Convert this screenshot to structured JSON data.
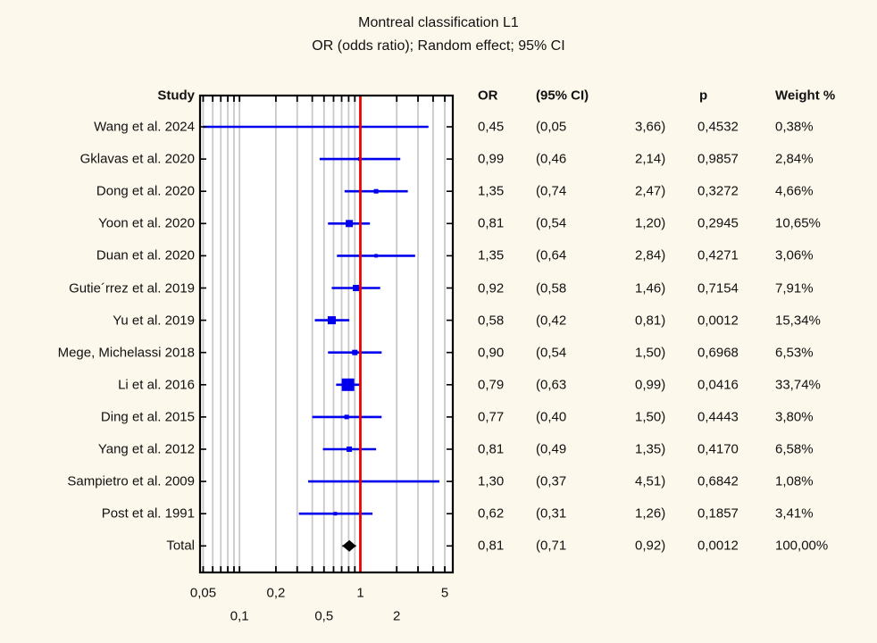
{
  "title": {
    "line1": "Montreal classification L1",
    "line2": "OR (odds ratio); Random effect; 95% CI"
  },
  "columns": {
    "study": "Study",
    "or": "OR",
    "ci": "(95% CI)",
    "p": "p",
    "weight": "Weight %"
  },
  "chart_data": {
    "type": "forest",
    "x_scale": "log",
    "ref_line": 1,
    "xlim": [
      0.047,
      5.9
    ],
    "x_ticks_major": [
      {
        "value": 0.05,
        "label": "0,05",
        "row": 1
      },
      {
        "value": 0.1,
        "label": "0,1",
        "row": 2
      },
      {
        "value": 0.2,
        "label": "0,2",
        "row": 1
      },
      {
        "value": 0.5,
        "label": "0,5",
        "row": 2
      },
      {
        "value": 1,
        "label": "1",
        "row": 1
      },
      {
        "value": 2,
        "label": "2",
        "row": 2
      },
      {
        "value": 5,
        "label": "5",
        "row": 1
      }
    ],
    "x_ticks_minor": [
      0.05,
      0.06,
      0.07,
      0.08,
      0.09,
      0.1,
      0.2,
      0.3,
      0.4,
      0.5,
      0.6,
      0.7,
      0.8,
      0.9,
      1,
      2,
      3,
      4,
      5
    ],
    "studies": [
      {
        "label": "Wang et al. 2024",
        "or": 0.45,
        "ci_low": 0.05,
        "ci_high": 3.66,
        "weight_pct": 0.38,
        "or_text": "0,45",
        "ci_low_text": "(0,05",
        "ci_high_text": "3,66)",
        "p_text": "0,4532",
        "weight_text": "0,38%"
      },
      {
        "label": "Gklavas et al. 2020",
        "or": 0.99,
        "ci_low": 0.46,
        "ci_high": 2.14,
        "weight_pct": 2.84,
        "or_text": "0,99",
        "ci_low_text": "(0,46",
        "ci_high_text": "2,14)",
        "p_text": "0,9857",
        "weight_text": "2,84%"
      },
      {
        "label": "Dong et al. 2020",
        "or": 1.35,
        "ci_low": 0.74,
        "ci_high": 2.47,
        "weight_pct": 4.66,
        "or_text": "1,35",
        "ci_low_text": "(0,74",
        "ci_high_text": "2,47)",
        "p_text": "0,3272",
        "weight_text": "4,66%"
      },
      {
        "label": "Yoon et al. 2020",
        "or": 0.81,
        "ci_low": 0.54,
        "ci_high": 1.2,
        "weight_pct": 10.65,
        "or_text": "0,81",
        "ci_low_text": "(0,54",
        "ci_high_text": "1,20)",
        "p_text": "0,2945",
        "weight_text": "10,65%"
      },
      {
        "label": "Duan et al. 2020",
        "or": 1.35,
        "ci_low": 0.64,
        "ci_high": 2.84,
        "weight_pct": 3.06,
        "or_text": "1,35",
        "ci_low_text": "(0,64",
        "ci_high_text": "2,84)",
        "p_text": "0,4271",
        "weight_text": "3,06%"
      },
      {
        "label": "Gutie´rrez et al. 2019",
        "or": 0.92,
        "ci_low": 0.58,
        "ci_high": 1.46,
        "weight_pct": 7.91,
        "or_text": "0,92",
        "ci_low_text": "(0,58",
        "ci_high_text": "1,46)",
        "p_text": "0,7154",
        "weight_text": "7,91%"
      },
      {
        "label": "Yu et al. 2019",
        "or": 0.58,
        "ci_low": 0.42,
        "ci_high": 0.81,
        "weight_pct": 15.34,
        "or_text": "0,58",
        "ci_low_text": "(0,42",
        "ci_high_text": "0,81)",
        "p_text": "0,0012",
        "weight_text": "15,34%"
      },
      {
        "label": "Mege, Michelassi 2018",
        "or": 0.9,
        "ci_low": 0.54,
        "ci_high": 1.5,
        "weight_pct": 6.53,
        "or_text": "0,90",
        "ci_low_text": "(0,54",
        "ci_high_text": "1,50)",
        "p_text": "0,6968",
        "weight_text": "6,53%"
      },
      {
        "label": "Li et al. 2016",
        "or": 0.79,
        "ci_low": 0.63,
        "ci_high": 0.99,
        "weight_pct": 33.74,
        "or_text": "0,79",
        "ci_low_text": "(0,63",
        "ci_high_text": "0,99)",
        "p_text": "0,0416",
        "weight_text": "33,74%"
      },
      {
        "label": "Ding et al. 2015",
        "or": 0.77,
        "ci_low": 0.4,
        "ci_high": 1.5,
        "weight_pct": 3.8,
        "or_text": "0,77",
        "ci_low_text": "(0,40",
        "ci_high_text": "1,50)",
        "p_text": "0,4443",
        "weight_text": "3,80%"
      },
      {
        "label": "Yang et al. 2012",
        "or": 0.81,
        "ci_low": 0.49,
        "ci_high": 1.35,
        "weight_pct": 6.58,
        "or_text": "0,81",
        "ci_low_text": "(0,49",
        "ci_high_text": "1,35)",
        "p_text": "0,4170",
        "weight_text": "6,58%"
      },
      {
        "label": "Sampietro et al. 2009",
        "or": 1.3,
        "ci_low": 0.37,
        "ci_high": 4.51,
        "weight_pct": 1.08,
        "or_text": "1,30",
        "ci_low_text": "(0,37",
        "ci_high_text": "4,51)",
        "p_text": "0,6842",
        "weight_text": "1,08%"
      },
      {
        "label": "Post et al. 1991",
        "or": 0.62,
        "ci_low": 0.31,
        "ci_high": 1.26,
        "weight_pct": 3.41,
        "or_text": "0,62",
        "ci_low_text": "(0,31",
        "ci_high_text": "1,26)",
        "p_text": "0,1857",
        "weight_text": "3,41%"
      }
    ],
    "total": {
      "label": "Total",
      "or": 0.81,
      "ci_low": 0.71,
      "ci_high": 0.92,
      "weight_pct": 100.0,
      "or_text": "0,81",
      "ci_low_text": "(0,71",
      "ci_high_text": "0,92)",
      "p_text": "0,0012",
      "weight_text": "100,00%"
    }
  },
  "colors": {
    "background": "#fdf8ec",
    "plot_bg": "#ffffff",
    "frame": "#000000",
    "grid": "#c9c9c9",
    "marker": "#0000ee",
    "ref_line": "#ee0000",
    "diamond": "#000000",
    "text": "#111111"
  }
}
